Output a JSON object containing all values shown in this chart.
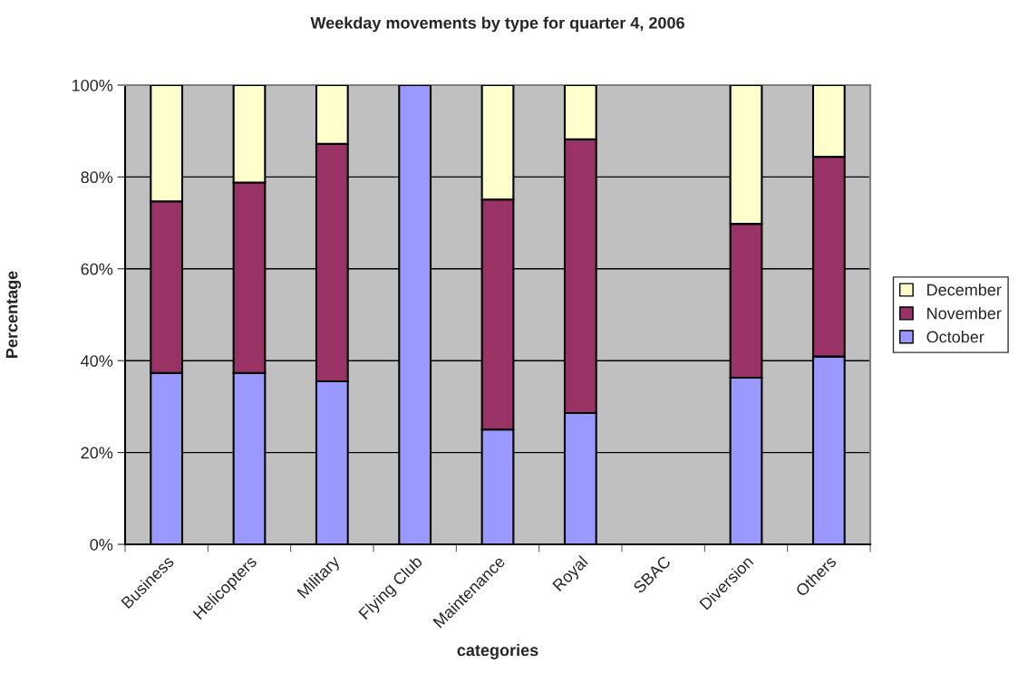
{
  "chart_data": {
    "type": "bar",
    "stacked": true,
    "title": "Weekday movements by type for quarter 4, 2006",
    "xlabel": "categories",
    "ylabel": "Percentage",
    "categories": [
      "Business",
      "Helicopters",
      "Military",
      "Flying Club",
      "Maintenance",
      "Royal",
      "SBAC",
      "Diversion",
      "Others"
    ],
    "series": [
      {
        "name": "October",
        "color": "#9999ff",
        "values": [
          37.3,
          37.3,
          35.5,
          100,
          25.0,
          28.6,
          0,
          36.3,
          40.9
        ]
      },
      {
        "name": "November",
        "color": "#993366",
        "values": [
          37.4,
          41.5,
          51.7,
          0,
          50.1,
          59.6,
          0,
          33.5,
          43.5
        ]
      },
      {
        "name": "December",
        "color": "#ffffcc",
        "values": [
          25.3,
          21.2,
          12.8,
          0,
          24.9,
          11.8,
          0,
          30.2,
          15.6
        ]
      }
    ],
    "ylim": [
      0,
      100
    ],
    "yticks": [
      {
        "value": 0,
        "label": "0%"
      },
      {
        "value": 20,
        "label": "20%"
      },
      {
        "value": 40,
        "label": "40%"
      },
      {
        "value": 60,
        "label": "60%"
      },
      {
        "value": 80,
        "label": "80%"
      },
      {
        "value": 100,
        "label": "100%"
      }
    ],
    "grid": "y",
    "legend": "right"
  }
}
